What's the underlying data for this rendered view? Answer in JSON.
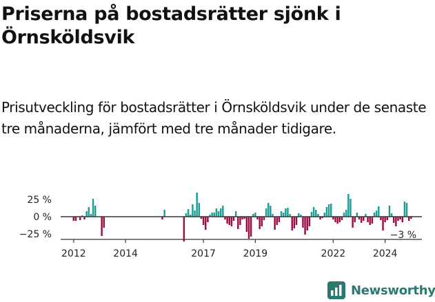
{
  "title": "Priserna på bostadsrätter sjönk i Örnsköldsvik",
  "subtitle": "Prisutveckling för bostadsrätter i Örnsköldsvik under de senaste tre månaderna, jämfört med tre månader tidigare.",
  "brand": {
    "name": "Newsworthy",
    "logo_icon": "bar-chart-logo-icon"
  },
  "colors": {
    "positive": "#1a9e96",
    "negative": "#9b0e45",
    "axis": "#333333",
    "text": "#222222"
  },
  "chart_data": {
    "type": "bar",
    "x_unit": "month",
    "xlim": [
      "2011-07",
      "2025-06"
    ],
    "ylim": [
      -35,
      37
    ],
    "y_ticks": [
      {
        "value": 25,
        "label": "25 %"
      },
      {
        "value": 0,
        "label": "0 %"
      },
      {
        "value": -25,
        "label": "−25 %"
      }
    ],
    "x_ticks": [
      "2012",
      "2014",
      "2017",
      "2019",
      "2022",
      "2024"
    ],
    "last_value_label": "−3 %",
    "bars": [
      {
        "x": "2012-01",
        "y": -6
      },
      {
        "x": "2012-02",
        "y": -6
      },
      {
        "x": "2012-04",
        "y": -5
      },
      {
        "x": "2012-05",
        "y": 2
      },
      {
        "x": "2012-06",
        "y": -4
      },
      {
        "x": "2012-07",
        "y": 8
      },
      {
        "x": "2012-08",
        "y": 14
      },
      {
        "x": "2012-09",
        "y": 4
      },
      {
        "x": "2012-10",
        "y": 26
      },
      {
        "x": "2012-11",
        "y": 16
      },
      {
        "x": "2013-02",
        "y": -28
      },
      {
        "x": "2013-03",
        "y": -16
      },
      {
        "x": "2015-06",
        "y": -4
      },
      {
        "x": "2015-07",
        "y": 10
      },
      {
        "x": "2016-04",
        "y": -36
      },
      {
        "x": "2016-05",
        "y": 5
      },
      {
        "x": "2016-06",
        "y": 11
      },
      {
        "x": "2016-07",
        "y": 3
      },
      {
        "x": "2016-08",
        "y": 18
      },
      {
        "x": "2016-09",
        "y": 9
      },
      {
        "x": "2016-10",
        "y": 35
      },
      {
        "x": "2016-11",
        "y": 20
      },
      {
        "x": "2016-12",
        "y": -3
      },
      {
        "x": "2017-01",
        "y": -12
      },
      {
        "x": "2017-02",
        "y": -19
      },
      {
        "x": "2017-03",
        "y": -8
      },
      {
        "x": "2017-04",
        "y": 3
      },
      {
        "x": "2017-05",
        "y": 6
      },
      {
        "x": "2017-06",
        "y": 6
      },
      {
        "x": "2017-07",
        "y": 12
      },
      {
        "x": "2017-08",
        "y": 8
      },
      {
        "x": "2017-09",
        "y": 12
      },
      {
        "x": "2017-10",
        "y": 16
      },
      {
        "x": "2017-11",
        "y": -4
      },
      {
        "x": "2017-12",
        "y": -10
      },
      {
        "x": "2018-01",
        "y": -12
      },
      {
        "x": "2018-02",
        "y": -14
      },
      {
        "x": "2018-03",
        "y": -6
      },
      {
        "x": "2018-04",
        "y": 8
      },
      {
        "x": "2018-05",
        "y": -18
      },
      {
        "x": "2018-06",
        "y": -12
      },
      {
        "x": "2018-07",
        "y": -4
      },
      {
        "x": "2018-08",
        "y": -3
      },
      {
        "x": "2018-09",
        "y": -22
      },
      {
        "x": "2018-10",
        "y": -32
      },
      {
        "x": "2018-11",
        "y": -29
      },
      {
        "x": "2018-12",
        "y": 4
      },
      {
        "x": "2019-01",
        "y": 6
      },
      {
        "x": "2019-02",
        "y": -4
      },
      {
        "x": "2019-03",
        "y": -18
      },
      {
        "x": "2019-04",
        "y": -14
      },
      {
        "x": "2019-05",
        "y": -5
      },
      {
        "x": "2019-06",
        "y": 12
      },
      {
        "x": "2019-07",
        "y": 20
      },
      {
        "x": "2019-08",
        "y": 16
      },
      {
        "x": "2019-09",
        "y": 4
      },
      {
        "x": "2019-10",
        "y": -19
      },
      {
        "x": "2019-11",
        "y": -12
      },
      {
        "x": "2019-12",
        "y": -8
      },
      {
        "x": "2020-01",
        "y": 8
      },
      {
        "x": "2020-02",
        "y": 6
      },
      {
        "x": "2020-03",
        "y": 12
      },
      {
        "x": "2020-04",
        "y": 13
      },
      {
        "x": "2020-05",
        "y": 4
      },
      {
        "x": "2020-06",
        "y": -20
      },
      {
        "x": "2020-07",
        "y": -17
      },
      {
        "x": "2020-08",
        "y": -12
      },
      {
        "x": "2020-09",
        "y": 5
      },
      {
        "x": "2020-10",
        "y": 3
      },
      {
        "x": "2020-11",
        "y": -16
      },
      {
        "x": "2020-12",
        "y": -26
      },
      {
        "x": "2021-01",
        "y": -20
      },
      {
        "x": "2021-02",
        "y": -14
      },
      {
        "x": "2021-03",
        "y": 7
      },
      {
        "x": "2021-04",
        "y": 14
      },
      {
        "x": "2021-05",
        "y": 10
      },
      {
        "x": "2021-06",
        "y": 4
      },
      {
        "x": "2021-07",
        "y": -4
      },
      {
        "x": "2021-08",
        "y": -2
      },
      {
        "x": "2021-09",
        "y": 6
      },
      {
        "x": "2021-10",
        "y": 14
      },
      {
        "x": "2021-11",
        "y": 18
      },
      {
        "x": "2021-12",
        "y": 19
      },
      {
        "x": "2022-01",
        "y": -4
      },
      {
        "x": "2022-02",
        "y": -8
      },
      {
        "x": "2022-03",
        "y": -10
      },
      {
        "x": "2022-04",
        "y": -8
      },
      {
        "x": "2022-05",
        "y": -5
      },
      {
        "x": "2022-06",
        "y": 6
      },
      {
        "x": "2022-07",
        "y": 10
      },
      {
        "x": "2022-08",
        "y": 33
      },
      {
        "x": "2022-09",
        "y": 26
      },
      {
        "x": "2022-10",
        "y": -16
      },
      {
        "x": "2022-11",
        "y": -8
      },
      {
        "x": "2022-12",
        "y": 6
      },
      {
        "x": "2023-01",
        "y": -4
      },
      {
        "x": "2023-02",
        "y": -9
      },
      {
        "x": "2023-03",
        "y": -6
      },
      {
        "x": "2023-04",
        "y": 4
      },
      {
        "x": "2023-05",
        "y": -8
      },
      {
        "x": "2023-06",
        "y": -12
      },
      {
        "x": "2023-07",
        "y": -10
      },
      {
        "x": "2023-08",
        "y": 6
      },
      {
        "x": "2023-09",
        "y": 9
      },
      {
        "x": "2023-10",
        "y": 15
      },
      {
        "x": "2023-11",
        "y": -5
      },
      {
        "x": "2023-12",
        "y": -20
      },
      {
        "x": "2024-01",
        "y": -8
      },
      {
        "x": "2024-02",
        "y": -5
      },
      {
        "x": "2024-03",
        "y": 16
      },
      {
        "x": "2024-04",
        "y": 5
      },
      {
        "x": "2024-05",
        "y": -9
      },
      {
        "x": "2024-06",
        "y": -14
      },
      {
        "x": "2024-07",
        "y": -6
      },
      {
        "x": "2024-08",
        "y": -4
      },
      {
        "x": "2024-09",
        "y": -8
      },
      {
        "x": "2024-10",
        "y": 22
      },
      {
        "x": "2024-11",
        "y": 20
      },
      {
        "x": "2024-12",
        "y": -6
      },
      {
        "x": "2025-01",
        "y": -3
      }
    ]
  }
}
